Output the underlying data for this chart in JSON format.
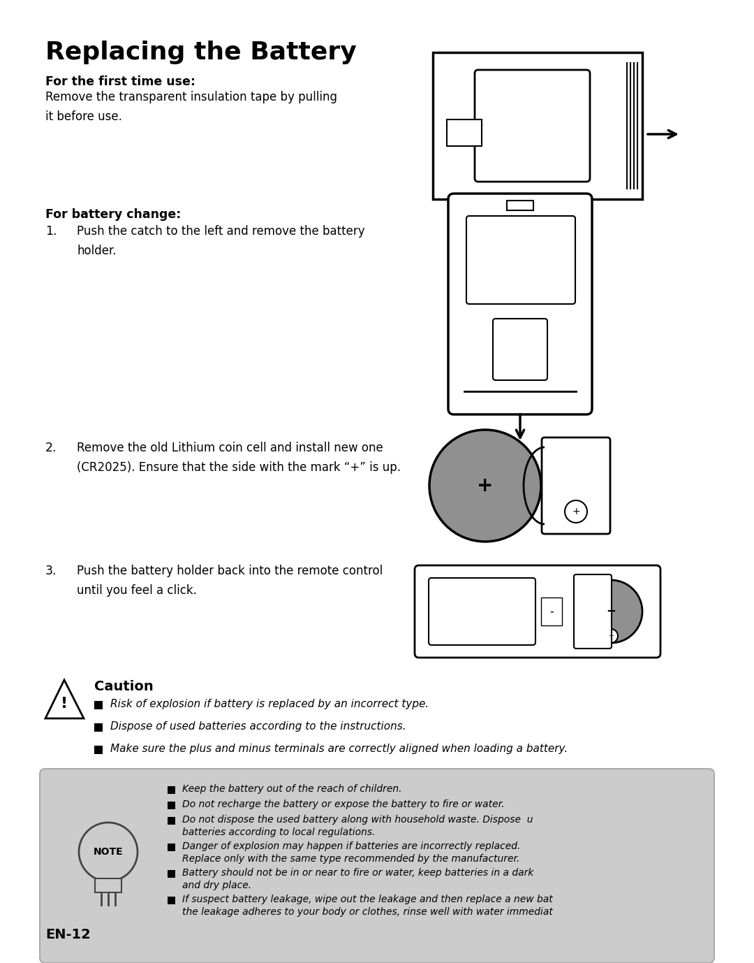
{
  "title": "Replacing the Battery",
  "bg_color": "#ffffff",
  "sections": {
    "first_time_label": "For the first time use:",
    "first_time_text": "Remove the transparent insulation tape by pulling\nit before use.",
    "battery_change_label": "For battery change:",
    "step1_num": "1.",
    "step1_text": "Push the catch to the left and remove the battery\nholder.",
    "step2_num": "2.",
    "step2_text": "Remove the old Lithium coin cell and install new one\n(CR2025). Ensure that the side with the mark “+” is up.",
    "step3_num": "3.",
    "step3_text": "Push the battery holder back into the remote control\nuntil you feel a click.",
    "caution_title": "Caution",
    "caution_items": [
      "Risk of explosion if battery is replaced by an incorrect type.",
      "Dispose of used batteries according to the instructions.",
      "Make sure the plus and minus terminals are correctly aligned when loading a battery."
    ],
    "note_items": [
      "Keep the battery out of the reach of children.",
      "Do not recharge the battery or expose the battery to fire or water.",
      "Do not dispose the used battery along with household waste. Dispose  u\nbatteries according to local regulations.",
      "Danger of explosion may happen if batteries are incorrectly replaced.\nReplace only with the same type recommended by the manufacturer.",
      "Battery should not be in or near to fire or water, keep batteries in a dark\nand dry place.",
      "If suspect battery leakage, wipe out the leakage and then replace a new bat\nthe leakage adheres to your body or clothes, rinse well with water immediat"
    ],
    "footer": "EN-12"
  }
}
